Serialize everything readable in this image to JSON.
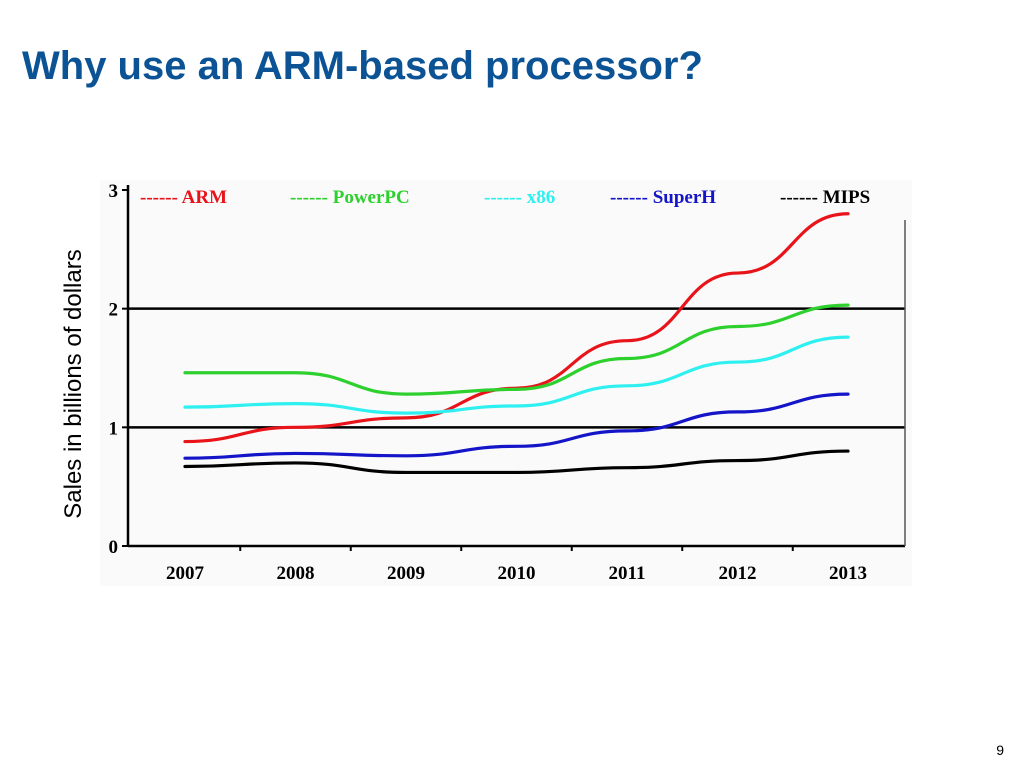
{
  "slide": {
    "title": "Why use an ARM-based processor?",
    "page_number": "9"
  },
  "chart_data": {
    "type": "line",
    "title": "",
    "xlabel": "",
    "ylabel": "Sales in billions of dollars",
    "x": [
      "2007",
      "2008",
      "2009",
      "2010",
      "2011",
      "2012",
      "2013"
    ],
    "y_ticks": [
      "0",
      "1",
      "2",
      "3"
    ],
    "ylim": [
      0,
      3
    ],
    "grid": "horizontal lines at 1 and 2",
    "legend_position": "top",
    "series": [
      {
        "name": "ARM",
        "legend_label": "------ ARM",
        "color": "#e8141a",
        "values": [
          0.88,
          1.0,
          1.08,
          1.33,
          1.73,
          2.3,
          2.8
        ]
      },
      {
        "name": "PowerPC",
        "legend_label": "------ PowerPC",
        "color": "#2ed02e",
        "values": [
          1.46,
          1.46,
          1.28,
          1.32,
          1.58,
          1.85,
          2.03
        ]
      },
      {
        "name": "x86",
        "legend_label": "------ x86",
        "color": "#2ff0f0",
        "values": [
          1.17,
          1.2,
          1.12,
          1.18,
          1.35,
          1.55,
          1.76
        ]
      },
      {
        "name": "SuperH",
        "legend_label": "------ SuperH",
        "color": "#1414c8",
        "values": [
          0.74,
          0.78,
          0.76,
          0.84,
          0.97,
          1.13,
          1.28
        ]
      },
      {
        "name": "MIPS",
        "legend_label": "------ MIPS",
        "color": "#000000",
        "values": [
          0.67,
          0.7,
          0.62,
          0.62,
          0.66,
          0.72,
          0.8
        ]
      }
    ]
  }
}
